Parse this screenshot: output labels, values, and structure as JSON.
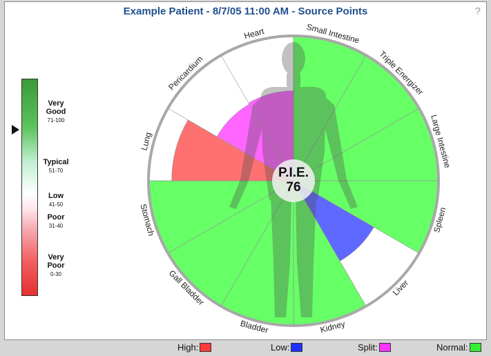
{
  "title": "Example Patient - 8/7/05 11:00 AM - Source Points",
  "help": "?",
  "scale": {
    "labels": [
      {
        "name": "Very\nGood",
        "range": "71-100"
      },
      {
        "name": "Typical",
        "range": "51-70"
      },
      {
        "name": "Low",
        "range": "41-50"
      },
      {
        "name": "Poor",
        "range": "31-40"
      },
      {
        "name": "Very\nPoor",
        "range": "0-30"
      }
    ],
    "pointer_value": 76
  },
  "center": {
    "label": "P.I.E.",
    "value": "76"
  },
  "chart_data": {
    "type": "polar_area",
    "title": "Example Patient - 8/7/05 11:00 AM - Source Points",
    "max_value": 100,
    "segments": [
      {
        "name": "Small Intestine",
        "value": 100,
        "status": "Normal"
      },
      {
        "name": "Triple Energizer",
        "value": 100,
        "status": "Normal"
      },
      {
        "name": "Large Intestine",
        "value": 100,
        "status": "Normal"
      },
      {
        "name": "Spleen",
        "value": 100,
        "status": "Normal"
      },
      {
        "name": "Liver",
        "value": 64,
        "status": "Low"
      },
      {
        "name": "Kidney",
        "value": 100,
        "status": "Normal"
      },
      {
        "name": "Bladder",
        "value": 100,
        "status": "Normal"
      },
      {
        "name": "Gall Bladder",
        "value": 100,
        "status": "Normal"
      },
      {
        "name": "Stomach",
        "value": 100,
        "status": "Normal"
      },
      {
        "name": "Lung",
        "value": 84,
        "status": "High"
      },
      {
        "name": "Pericardium",
        "value": 61,
        "status": "Split"
      },
      {
        "name": "Heart",
        "value": 62,
        "status": "Split"
      }
    ]
  },
  "legend": [
    {
      "label": "High:",
      "color": "#ff3b3b"
    },
    {
      "label": "Low:",
      "color": "#2030ff"
    },
    {
      "label": "Split:",
      "color": "#ff33ff"
    },
    {
      "label": "Normal:",
      "color": "#33ee33"
    }
  ],
  "colors": {
    "Normal": "#33ff33",
    "Low": "#2a36ff",
    "High": "#ff4040",
    "Split": "#ff33ff",
    "ring": "#a8a8a8"
  }
}
